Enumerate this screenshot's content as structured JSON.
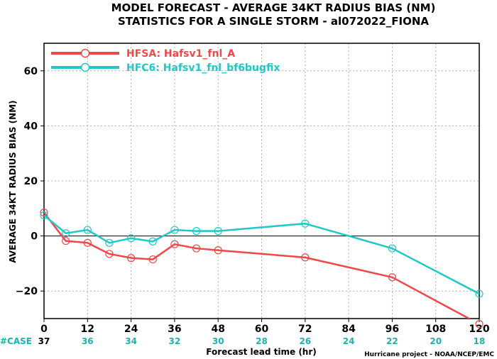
{
  "chart_data": {
    "type": "line",
    "title_lines": [
      "MODEL FORECAST - AVERAGE 34KT RADIUS BIAS (NM)",
      "STATISTICS FOR A SINGLE STORM - al072022_FIONA"
    ],
    "xlabel": "Forecast lead time (hr)",
    "ylabel": "AVERAGE 34KT RADIUS BIAS (NM)",
    "xlim": [
      0,
      120
    ],
    "ylim": [
      -30,
      70
    ],
    "x_ticks": [
      0,
      12,
      24,
      36,
      48,
      60,
      72,
      84,
      96,
      108,
      120
    ],
    "y_ticks": [
      -20,
      0,
      20,
      40,
      60
    ],
    "grid": true,
    "legend_position": "top-left",
    "series": [
      {
        "name": "HFSA: Hafsv1_fnl_A",
        "color": "#f04848",
        "x": [
          0,
          6,
          12,
          18,
          24,
          30,
          36,
          42,
          48,
          72,
          96,
          120
        ],
        "y": [
          8.5,
          -1.8,
          -2.5,
          -6.5,
          -8.0,
          -8.5,
          -3.0,
          -4.5,
          -5.2,
          -7.8,
          -15.0,
          -32.0
        ]
      },
      {
        "name": "HFC6: Hafsv1_fnl_bf6bugfix",
        "color": "#20c8c8",
        "x": [
          0,
          6,
          12,
          18,
          24,
          30,
          36,
          42,
          48,
          72,
          96,
          120
        ],
        "y": [
          7.5,
          1.0,
          2.2,
          -2.5,
          -0.8,
          -2.0,
          2.2,
          1.8,
          1.8,
          4.5,
          -4.5,
          -21.0
        ]
      }
    ],
    "case_label": "#CASE",
    "case_counts": [
      {
        "x": 0,
        "label": "37",
        "color": "#000000"
      },
      {
        "x": 12,
        "label": "36",
        "color": "#20b0b0"
      },
      {
        "x": 24,
        "label": "34",
        "color": "#20b0b0"
      },
      {
        "x": 36,
        "label": "32",
        "color": "#20b0b0"
      },
      {
        "x": 48,
        "label": "30",
        "color": "#20b0b0"
      },
      {
        "x": 60,
        "label": "28",
        "color": "#20b0b0"
      },
      {
        "x": 72,
        "label": "26",
        "color": "#20b0b0"
      },
      {
        "x": 84,
        "label": "24",
        "color": "#20b0b0"
      },
      {
        "x": 96,
        "label": "22",
        "color": "#20b0b0"
      },
      {
        "x": 108,
        "label": "20",
        "color": "#20b0b0"
      },
      {
        "x": 120,
        "label": "18",
        "color": "#20b0b0"
      }
    ],
    "case_label_color": "#20b0b0",
    "credit": "Hurricane project - NOAA/NCEP/EMC"
  }
}
